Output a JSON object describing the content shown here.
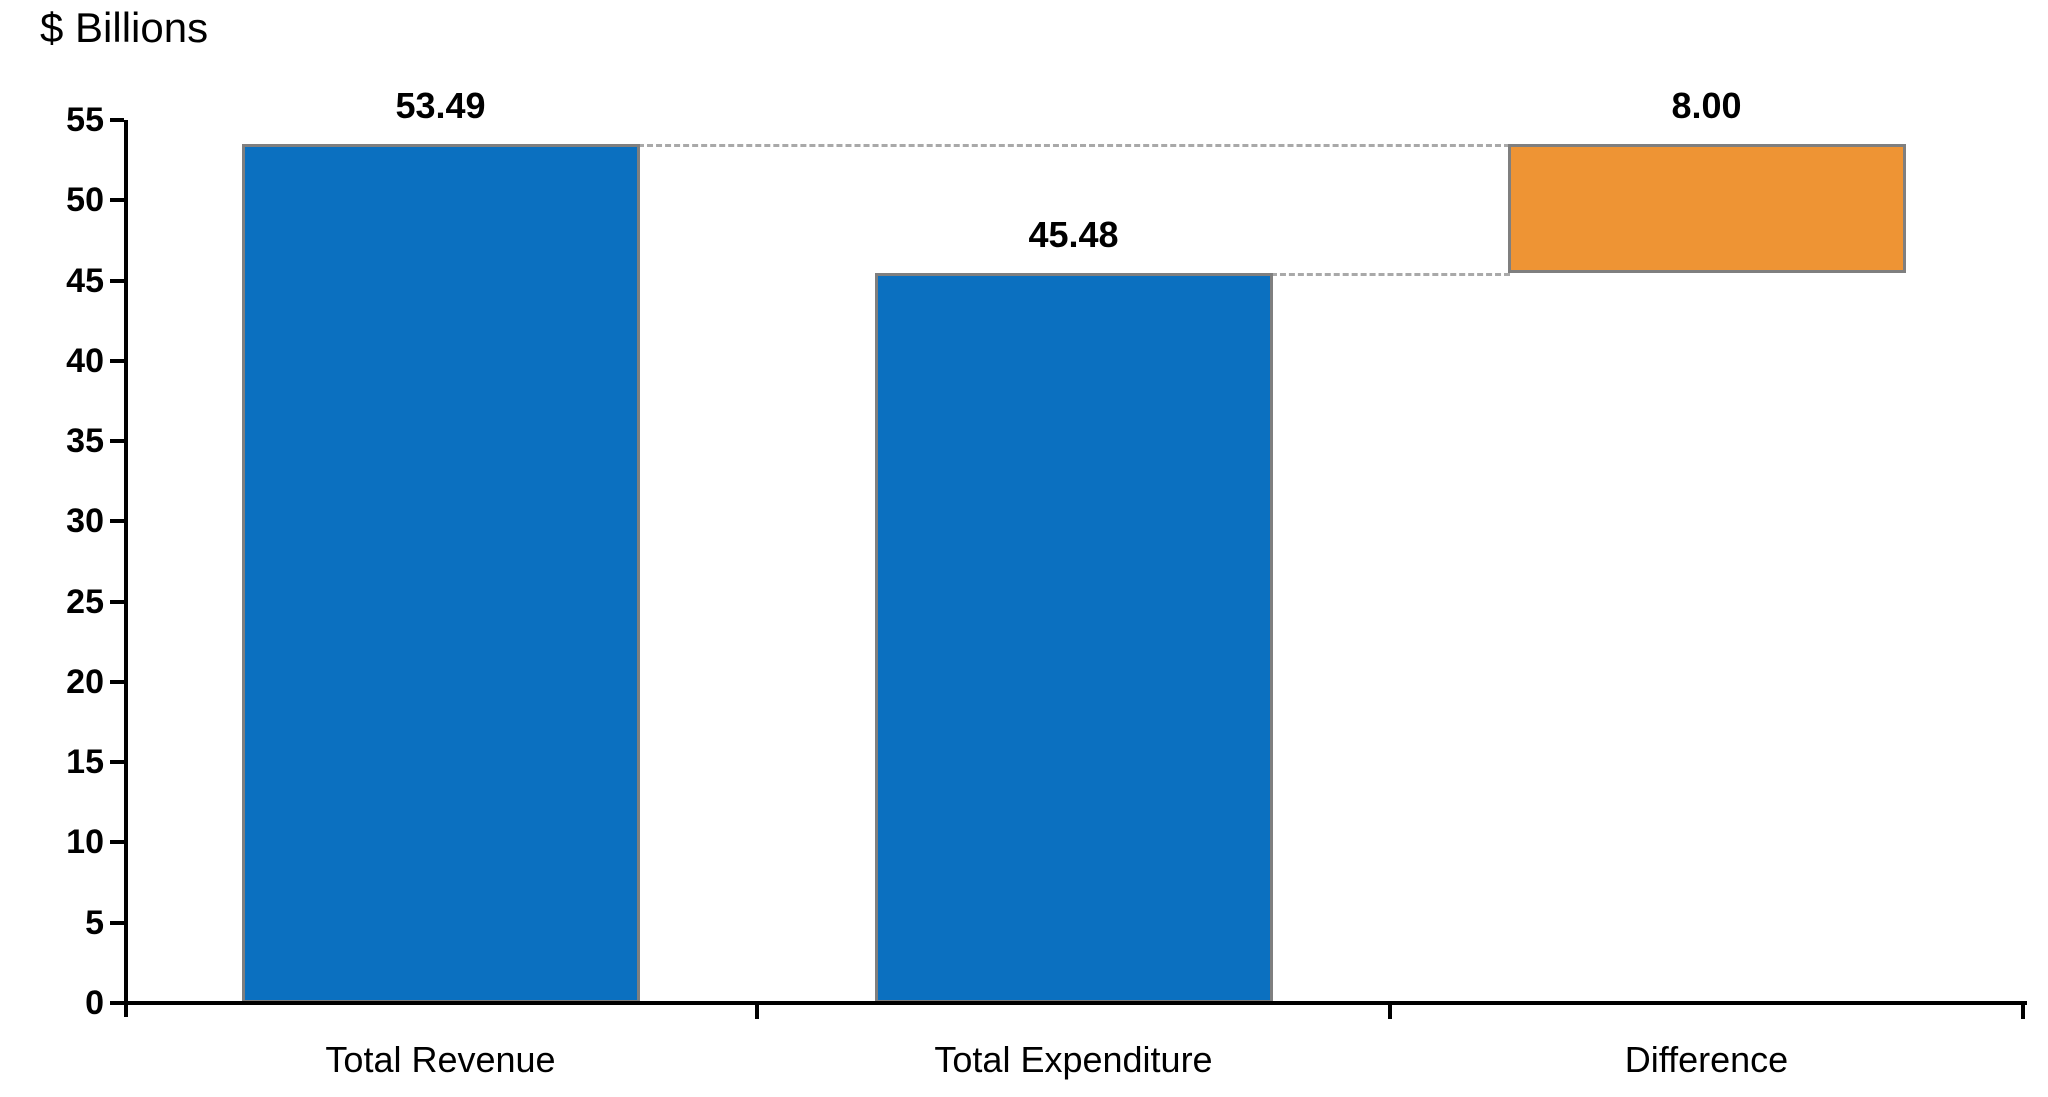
{
  "chart_data": {
    "type": "bar",
    "subtype": "waterfall",
    "title": "$ Billions",
    "categories": [
      "Total Revenue",
      "Total Expenditure",
      "Difference"
    ],
    "bars": [
      {
        "category": "Total Revenue",
        "start": 0,
        "end": 53.49,
        "label": "53.49",
        "color": "#0B70C0"
      },
      {
        "category": "Total Expenditure",
        "start": 0,
        "end": 45.48,
        "label": "45.48",
        "color": "#0B70C0"
      },
      {
        "category": "Difference",
        "start": 45.48,
        "end": 53.49,
        "label": "8.00",
        "color": "#EE9434"
      }
    ],
    "connectors": [
      {
        "value": 53.49,
        "from_bar": 0,
        "to_bar": 2
      },
      {
        "value": 45.48,
        "from_bar": 1,
        "to_bar": 2
      }
    ],
    "ylim": [
      0,
      55
    ],
    "yticks": [
      0,
      5,
      10,
      15,
      20,
      25,
      30,
      35,
      40,
      45,
      50,
      55
    ],
    "grid": false,
    "legend": false,
    "colors": {
      "bar_blue": "#0B70C0",
      "bar_orange": "#EE9434",
      "bar_border": "#7F7F7F",
      "connector_gray": "#A9A9A9",
      "axis_black": "#000000"
    }
  }
}
